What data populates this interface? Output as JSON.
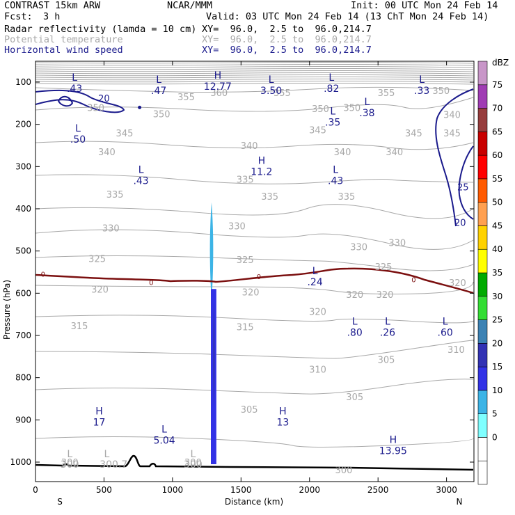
{
  "header": {
    "model": "CONTRAST 15km ARW",
    "org": "NCAR/MMM",
    "init": "Init: 00 UTC Mon 24 Feb 14",
    "fcst_label": "Fcst:",
    "fcst_value": "3 h",
    "valid": "Valid: 03 UTC Mon 24 Feb 14 (13 ChT Mon 24 Feb 14)",
    "fields": [
      {
        "name": "Radar reflectivity (lamda = 10 cm)",
        "xy": "XY=  96.0,  2.5 to  96.0,214.7"
      },
      {
        "name": "Potential temperature",
        "xy": "XY=  96.0,  2.5 to  96.0,214.7"
      },
      {
        "name": "Horizontal wind speed",
        "xy": "XY=  96.0,  2.5 to  96.0,214.7"
      }
    ]
  },
  "colors": {
    "theta": "#a8a8a8",
    "wind": "#1a1a8c",
    "zero_line": "#7b0f0f",
    "terrain": "#000000"
  },
  "chart_data": {
    "type": "heatmap",
    "xlabel": "Distance (km)",
    "ylabel": "Pressure (hPa)",
    "xlim": [
      0,
      3200
    ],
    "ylim": [
      1050,
      40
    ],
    "x_ticks": [
      0,
      500,
      1000,
      1500,
      2000,
      2500,
      3000
    ],
    "y_ticks": [
      100,
      200,
      300,
      400,
      500,
      600,
      700,
      800,
      900,
      1000
    ],
    "x_end_labels": {
      "left": "S",
      "right": "N"
    },
    "colorbar": {
      "unit": "dBZ",
      "levels": [
        "-5",
        "0",
        "5",
        "10",
        "15",
        "20",
        "25",
        "30",
        "35",
        "40",
        "45",
        "50",
        "55",
        "60",
        "65",
        "70",
        "75",
        "80"
      ],
      "colors": [
        "#ffffff",
        "#ffffff",
        "#7fffff",
        "#3cb4e6",
        "#3232e6",
        "#3232b4",
        "#3c82b4",
        "#33dd33",
        "#00aa00",
        "#ffff00",
        "#ffd200",
        "#ffa050",
        "#ff5a00",
        "#ff0000",
        "#c80000",
        "#963c3c",
        "#a03cb4",
        "#c896c8"
      ],
      "labels": [
        "0",
        "5",
        "10",
        "15",
        "20",
        "25",
        "30",
        "35",
        "40",
        "45",
        "50",
        "55",
        "60",
        "65",
        "70",
        "75"
      ]
    },
    "reflectivity": [
      {
        "dbz": 5,
        "x": [
          1270,
          1300
        ],
        "p": [
          385,
          590
        ]
      },
      {
        "dbz": 10,
        "x": [
          1280,
          1320
        ],
        "p": [
          590,
          1005
        ]
      },
      {
        "dbz": 15,
        "x": [
          1295,
          1310
        ],
        "p": [
          620,
          870
        ]
      }
    ],
    "theta_labels": [
      {
        "text": "360",
        "x": 1340,
        "p": 125
      },
      {
        "text": "355",
        "x": 1100,
        "p": 135
      },
      {
        "text": "355",
        "x": 1800,
        "p": 125
      },
      {
        "text": "355",
        "x": 2560,
        "p": 125
      },
      {
        "text": "350",
        "x": 440,
        "p": 160
      },
      {
        "text": "350",
        "x": 920,
        "p": 175
      },
      {
        "text": "350",
        "x": 2310,
        "p": 160
      },
      {
        "text": "350",
        "x": 2080,
        "p": 163
      },
      {
        "text": "350",
        "x": 2960,
        "p": 120
      },
      {
        "text": "340",
        "x": 3040,
        "p": 177
      },
      {
        "text": "345",
        "x": 650,
        "p": 220
      },
      {
        "text": "345",
        "x": 2060,
        "p": 213
      },
      {
        "text": "345",
        "x": 2760,
        "p": 220
      },
      {
        "text": "345",
        "x": 3040,
        "p": 220
      },
      {
        "text": "340",
        "x": 520,
        "p": 265
      },
      {
        "text": "340",
        "x": 1560,
        "p": 250
      },
      {
        "text": "340",
        "x": 2240,
        "p": 265
      },
      {
        "text": "340",
        "x": 2620,
        "p": 265
      },
      {
        "text": "335",
        "x": 580,
        "p": 365
      },
      {
        "text": "335",
        "x": 1530,
        "p": 330
      },
      {
        "text": "335",
        "x": 1710,
        "p": 370
      },
      {
        "text": "335",
        "x": 2270,
        "p": 370
      },
      {
        "text": "330",
        "x": 550,
        "p": 445
      },
      {
        "text": "330",
        "x": 1470,
        "p": 440
      },
      {
        "text": "330",
        "x": 2360,
        "p": 490
      },
      {
        "text": "330",
        "x": 2640,
        "p": 480
      },
      {
        "text": "325",
        "x": 450,
        "p": 518
      },
      {
        "text": "325",
        "x": 1530,
        "p": 520
      },
      {
        "text": "325",
        "x": 2540,
        "p": 537
      },
      {
        "text": "320",
        "x": 470,
        "p": 590
      },
      {
        "text": "320",
        "x": 1570,
        "p": 597
      },
      {
        "text": "320",
        "x": 2330,
        "p": 603
      },
      {
        "text": "320",
        "x": 2550,
        "p": 603
      },
      {
        "text": "320",
        "x": 2060,
        "p": 643
      },
      {
        "text": "320",
        "x": 3080,
        "p": 575
      },
      {
        "text": "315",
        "x": 320,
        "p": 677
      },
      {
        "text": "315",
        "x": 1530,
        "p": 679
      },
      {
        "text": "310",
        "x": 2060,
        "p": 780
      },
      {
        "text": "310",
        "x": 3070,
        "p": 733
      },
      {
        "text": "305",
        "x": 2560,
        "p": 757
      },
      {
        "text": "305",
        "x": 2330,
        "p": 845
      },
      {
        "text": "305",
        "x": 1560,
        "p": 875
      },
      {
        "text": "300",
        "x": 250,
        "p": 1000
      },
      {
        "text": "300",
        "x": 1150,
        "p": 1000
      },
      {
        "text": "300",
        "x": 2250,
        "p": 1018
      }
    ],
    "theta_extrema": [
      {
        "text": "L",
        "x": 250,
        "p": 980
      },
      {
        "text": "300",
        "x": 250,
        "p": 1005
      },
      {
        "text": "L",
        "x": 520,
        "p": 980
      },
      {
        "text": "300.7",
        "x": 570,
        "p": 1005
      },
      {
        "text": "L",
        "x": 1150,
        "p": 980
      },
      {
        "text": "300",
        "x": 1150,
        "p": 1005
      }
    ],
    "wind_labels": [
      {
        "text": "20",
        "x": 500,
        "p": 138
      },
      {
        "text": "25",
        "x": 3120,
        "p": 348
      },
      {
        "text": "20",
        "x": 3100,
        "p": 432
      }
    ],
    "wind_extrema": [
      {
        "type": "L",
        "value": ".43",
        "x": 285,
        "p": 100
      },
      {
        "type": "L",
        "value": ".47",
        "x": 900,
        "p": 105
      },
      {
        "type": "H",
        "value": "12.77",
        "x": 1330,
        "p": 95
      },
      {
        "type": "L",
        "value": "3.50",
        "x": 1720,
        "p": 105
      },
      {
        "type": "L",
        "value": ".82",
        "x": 2160,
        "p": 100
      },
      {
        "type": "L",
        "value": ".33",
        "x": 2820,
        "p": 105
      },
      {
        "type": "L",
        "value": ".38",
        "x": 2420,
        "p": 158
      },
      {
        "type": "L",
        "value": ".35",
        "x": 2170,
        "p": 180
      },
      {
        "type": "L",
        "value": ".50",
        "x": 310,
        "p": 220
      },
      {
        "type": "H",
        "value": "11.2",
        "x": 1650,
        "p": 297
      },
      {
        "type": "L",
        "value": ".43",
        "x": 770,
        "p": 318
      },
      {
        "type": "L",
        "value": ".43",
        "x": 2190,
        "p": 318
      },
      {
        "type": "L",
        "value": ".24",
        "x": 2040,
        "p": 558
      },
      {
        "type": "L",
        "value": ".80",
        "x": 2330,
        "p": 678
      },
      {
        "type": "L",
        "value": ".26",
        "x": 2570,
        "p": 678
      },
      {
        "type": "L",
        "value": ".60",
        "x": 2990,
        "p": 678
      },
      {
        "type": "H",
        "value": "17",
        "x": 465,
        "p": 890
      },
      {
        "type": "L",
        "value": "5.04",
        "x": 940,
        "p": 933
      },
      {
        "type": "H",
        "value": "13",
        "x": 1805,
        "p": 890
      },
      {
        "type": "H",
        "value": "13.95",
        "x": 2610,
        "p": 958
      }
    ],
    "refl_zero_labels": [
      {
        "text": "0",
        "x": 55,
        "p": 554
      },
      {
        "text": "0",
        "x": 845,
        "p": 574
      },
      {
        "text": "0",
        "x": 1630,
        "p": 560
      },
      {
        "text": "0",
        "x": 2760,
        "p": 567
      }
    ]
  }
}
